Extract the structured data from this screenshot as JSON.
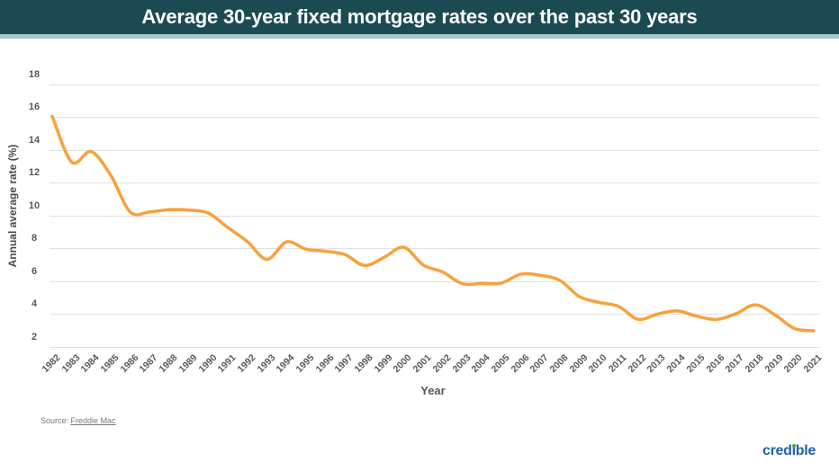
{
  "header": {
    "bg_color": "#1c4a53",
    "accent_strip_color": "#a5c8cc"
  },
  "chart_data": {
    "type": "line",
    "title": "Average 30-year fixed mortgage rates over the past 30 years",
    "xlabel": "Year",
    "ylabel": "Annual average rate (%)",
    "x": [
      1982,
      1983,
      1984,
      1985,
      1986,
      1987,
      1988,
      1989,
      1990,
      1991,
      1992,
      1993,
      1994,
      1995,
      1996,
      1997,
      1998,
      1999,
      2000,
      2001,
      2002,
      2003,
      2004,
      2005,
      2006,
      2007,
      2008,
      2009,
      2010,
      2011,
      2012,
      2013,
      2014,
      2015,
      2016,
      2017,
      2018,
      2019,
      2020,
      2021
    ],
    "values": [
      16.04,
      13.24,
      13.88,
      12.43,
      10.19,
      10.21,
      10.34,
      10.32,
      10.13,
      9.25,
      8.39,
      7.31,
      8.38,
      7.93,
      7.81,
      7.6,
      6.94,
      7.44,
      8.05,
      6.97,
      6.54,
      5.83,
      5.84,
      5.87,
      6.41,
      6.34,
      6.03,
      5.04,
      4.69,
      4.45,
      3.66,
      3.98,
      4.17,
      3.85,
      3.65,
      3.99,
      4.54,
      3.94,
      3.1,
      2.96
    ],
    "ylim": [
      2,
      18
    ],
    "yticks": [
      2,
      4,
      6,
      8,
      10,
      12,
      14,
      16,
      18
    ],
    "grid": true,
    "legend": "none",
    "line_color": "#f9a13b",
    "grid_color": "#e0e0e1"
  },
  "footer": {
    "source_label": "Source:",
    "source_link": "Freddie Mac",
    "logo_text": "credible",
    "logo_color": "#2061a9",
    "logo_dot_color": "#3dae4a"
  }
}
